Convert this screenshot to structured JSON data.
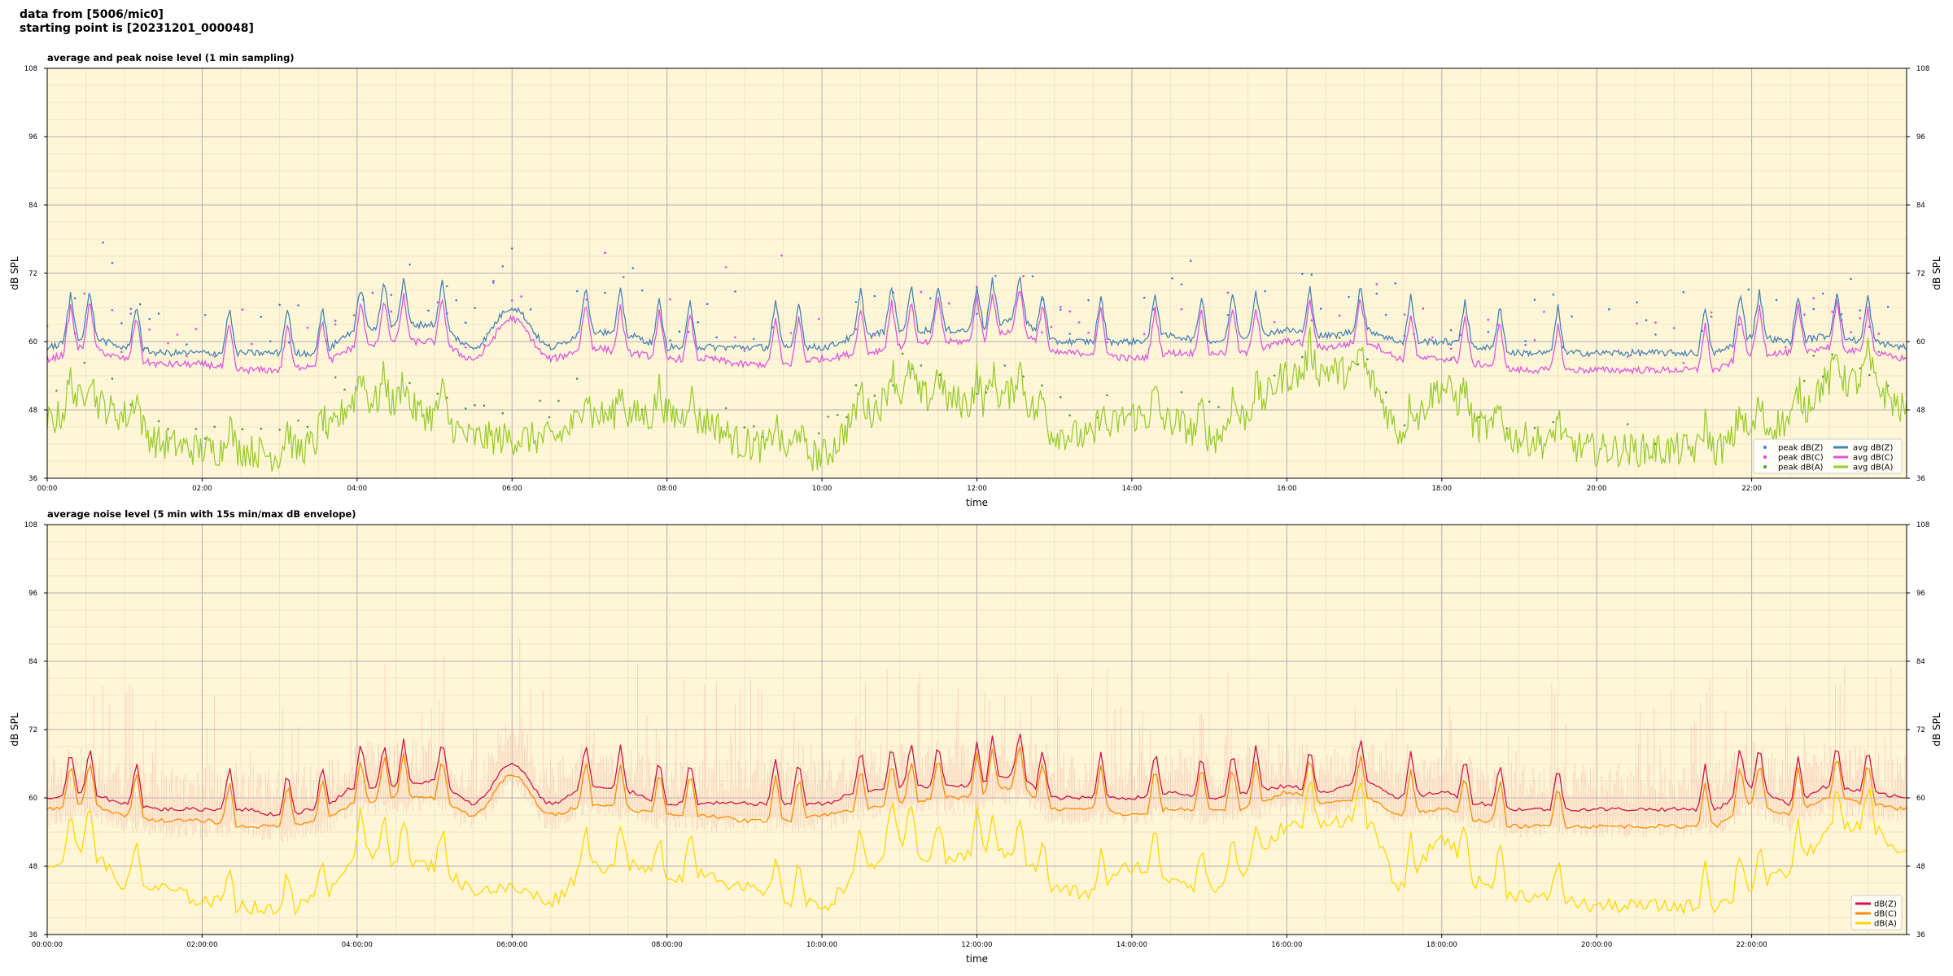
{
  "header": {
    "line1": "data from [5006/mic0]",
    "line2": "starting point is [20231201_000048]"
  },
  "colors": {
    "plot_bg": "#fff6d8",
    "grid_major": "#b0b0b0",
    "grid_minor": "#ece2bd",
    "peak_z": "#3a7fd9",
    "peak_c": "#e83ee3",
    "peak_a": "#4b9a3a",
    "avg_z": "#4682b4",
    "avg_c": "#dd55dd",
    "avg_a": "#9acd32",
    "z": "#d11445",
    "c": "#ff8c00",
    "a": "#ffd700",
    "envelope": "#f4b8a8"
  },
  "chart_data": [
    {
      "type": "line",
      "title": "average and peak noise level (1 min sampling)",
      "xlabel": "time",
      "ylabel": "dB SPL",
      "ylim": [
        36,
        108
      ],
      "yticks": [
        "36",
        "48",
        "60",
        "72",
        "84",
        "96",
        "108"
      ],
      "xlim_hours": [
        0,
        24
      ],
      "xticks": [
        "00:00",
        "02:00",
        "04:00",
        "06:00",
        "08:00",
        "10:00",
        "12:00",
        "14:00",
        "16:00",
        "18:00",
        "20:00",
        "22:00"
      ],
      "grid": true,
      "legend_position": "lower-right",
      "legend": [
        "peak dB(Z)",
        "peak dB(C)",
        "peak dB(A)",
        "avg dB(Z)",
        "avg dB(C)",
        "avg dB(A)"
      ],
      "x": [
        "00:00",
        "00:30",
        "01:00",
        "01:30",
        "02:00",
        "02:30",
        "03:00",
        "03:30",
        "04:00",
        "04:30",
        "05:00",
        "05:30",
        "06:00",
        "06:30",
        "07:00",
        "07:30",
        "08:00",
        "08:30",
        "09:00",
        "09:30",
        "10:00",
        "10:30",
        "11:00",
        "11:30",
        "12:00",
        "12:30",
        "13:00",
        "13:30",
        "14:00",
        "14:30",
        "15:00",
        "15:30",
        "16:00",
        "16:30",
        "17:00",
        "17:30",
        "18:00",
        "18:30",
        "19:00",
        "19:30",
        "20:00",
        "20:30",
        "21:00",
        "21:30",
        "22:00",
        "22:30",
        "23:00",
        "23:30",
        "24:00"
      ],
      "series": [
        {
          "name": "avg dB(Z)",
          "values": [
            59,
            61,
            59,
            58,
            58,
            58,
            58,
            58,
            62,
            63,
            63,
            59,
            66,
            59,
            62,
            61,
            59,
            59,
            59,
            59,
            59,
            61,
            62,
            62,
            62,
            64,
            60,
            60,
            60,
            61,
            60,
            61,
            62,
            61,
            62,
            60,
            60,
            59,
            58,
            58,
            58,
            58,
            58,
            58,
            61,
            60,
            61,
            60,
            59
          ]
        },
        {
          "name": "avg dB(C)",
          "values": [
            57,
            59,
            57,
            56,
            56,
            55,
            55,
            56,
            59,
            60,
            60,
            57,
            64,
            57,
            59,
            58,
            57,
            57,
            56,
            56,
            57,
            58,
            59,
            60,
            60,
            62,
            58,
            58,
            57,
            58,
            58,
            58,
            60,
            59,
            60,
            57,
            57,
            56,
            55,
            55,
            55,
            55,
            55,
            55,
            58,
            58,
            59,
            58,
            57
          ]
        },
        {
          "name": "avg dB(A)",
          "values": [
            46,
            50,
            47,
            42,
            41,
            41,
            40,
            42,
            50,
            49,
            47,
            43,
            43,
            43,
            47,
            47,
            47,
            46,
            42,
            41,
            40,
            47,
            51,
            50,
            49,
            51,
            44,
            43,
            47,
            46,
            43,
            47,
            54,
            55,
            54,
            44,
            52,
            45,
            43,
            42,
            41,
            41,
            41,
            41,
            44,
            46,
            53,
            53,
            48
          ]
        }
      ]
    },
    {
      "type": "line",
      "title": "average noise level (5 min with 15s min/max dB envelope)",
      "xlabel": "time",
      "ylabel": "dB SPL",
      "ylim": [
        36,
        108
      ],
      "yticks": [
        "36",
        "48",
        "60",
        "72",
        "84",
        "96",
        "108"
      ],
      "xlim_hours": [
        0,
        24
      ],
      "xticks": [
        "00:00:00",
        "02:00:00",
        "04:00:00",
        "06:00:00",
        "08:00:00",
        "10:00:00",
        "12:00:00",
        "14:00:00",
        "16:00:00",
        "18:00:00",
        "20:00:00",
        "22:00:00"
      ],
      "grid": true,
      "legend_position": "lower-right",
      "legend": [
        "dB(Z)",
        "dB(C)",
        "dB(A)"
      ],
      "x": [
        "00:00",
        "00:30",
        "01:00",
        "01:30",
        "02:00",
        "02:30",
        "03:00",
        "03:30",
        "04:00",
        "04:30",
        "05:00",
        "05:30",
        "06:00",
        "06:30",
        "07:00",
        "07:30",
        "08:00",
        "08:30",
        "09:00",
        "09:30",
        "10:00",
        "10:30",
        "11:00",
        "11:30",
        "12:00",
        "12:30",
        "13:00",
        "13:30",
        "14:00",
        "14:30",
        "15:00",
        "15:30",
        "16:00",
        "16:30",
        "17:00",
        "17:30",
        "18:00",
        "18:30",
        "19:00",
        "19:30",
        "20:00",
        "20:30",
        "21:00",
        "21:30",
        "22:00",
        "22:30",
        "23:00",
        "23:30",
        "24:00"
      ],
      "series": [
        {
          "name": "dB(Z)",
          "values": [
            60,
            61,
            59,
            58,
            58,
            58,
            57,
            58,
            62,
            62,
            63,
            59,
            66,
            59,
            62,
            61,
            59,
            59,
            59,
            59,
            59,
            61,
            62,
            62,
            62,
            64,
            60,
            60,
            60,
            61,
            60,
            61,
            62,
            61,
            63,
            60,
            61,
            59,
            58,
            58,
            58,
            58,
            58,
            58,
            62,
            59,
            62,
            61,
            60
          ]
        },
        {
          "name": "dB(C)",
          "values": [
            58,
            59,
            57,
            56,
            56,
            55,
            55,
            56,
            59,
            60,
            60,
            57,
            64,
            57,
            59,
            58,
            57,
            57,
            56,
            56,
            57,
            58,
            59,
            60,
            60,
            62,
            58,
            58,
            57,
            58,
            58,
            58,
            61,
            59,
            60,
            57,
            58,
            56,
            55,
            55,
            55,
            55,
            55,
            55,
            59,
            57,
            60,
            59,
            58
          ]
        },
        {
          "name": "dB(A)",
          "values": [
            48,
            51,
            45,
            44,
            42,
            41,
            40,
            42,
            50,
            49,
            48,
            44,
            44,
            42,
            48,
            48,
            46,
            47,
            44,
            42,
            41,
            47,
            52,
            49,
            50,
            50,
            44,
            43,
            48,
            46,
            44,
            47,
            55,
            56,
            56,
            44,
            53,
            45,
            43,
            42,
            41,
            41,
            41,
            41,
            44,
            47,
            54,
            55,
            50
          ]
        }
      ]
    }
  ]
}
